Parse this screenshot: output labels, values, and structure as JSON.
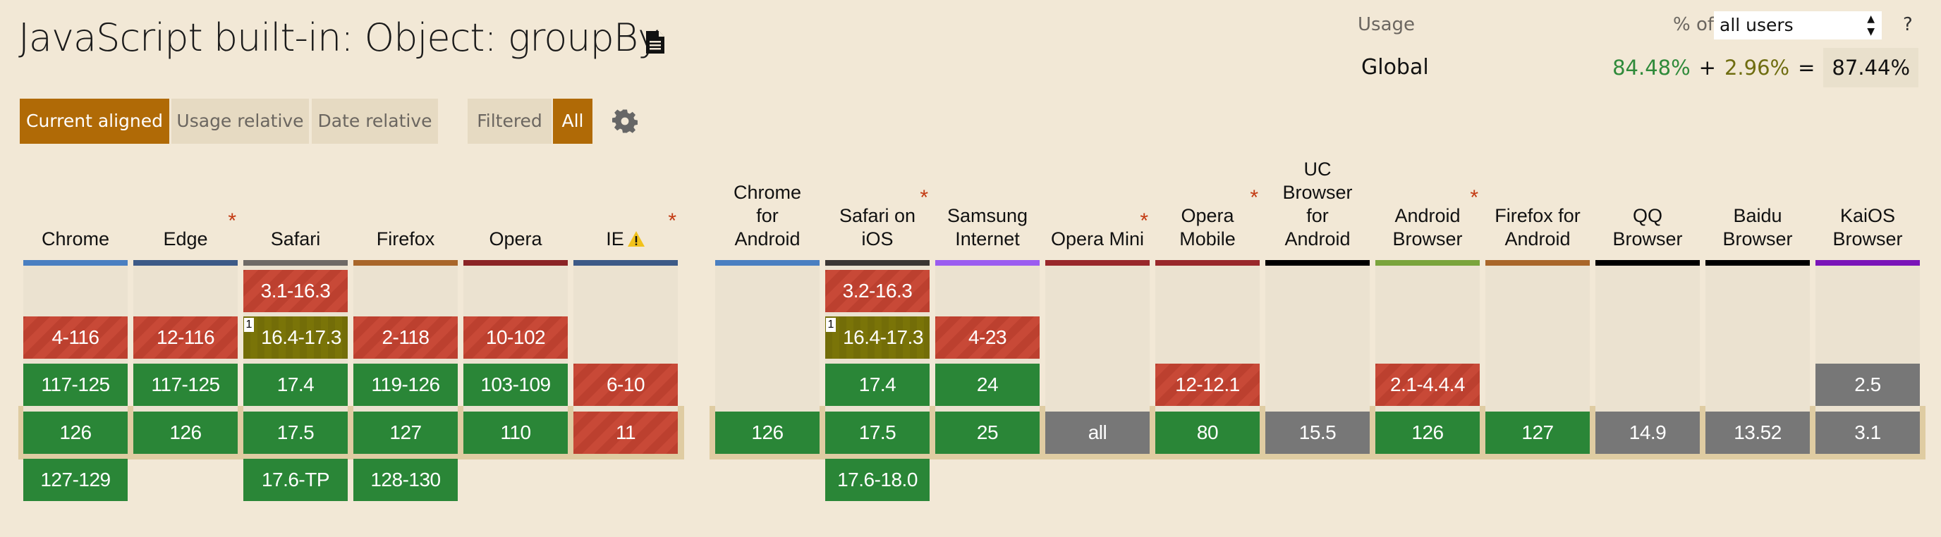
{
  "title": "JavaScript built-in: Object: groupBy",
  "toolbar": {
    "modes": [
      "Current aligned",
      "Usage relative",
      "Date relative"
    ],
    "active_mode": "Current aligned",
    "filters": [
      "Filtered",
      "All"
    ],
    "active_filter": "All"
  },
  "usage": {
    "label": "Usage",
    "pct_of": "% of",
    "select_value": "all users",
    "help": "?",
    "region": "Global",
    "full": "84.48%",
    "plus": "+",
    "partial": "2.96%",
    "equals": "=",
    "total": "87.44%"
  },
  "colors": {
    "supported": "#2a8637",
    "unsupported": "#c64331",
    "partial": "#7a7408",
    "unknown": "#777777",
    "accent": "#b06a06"
  },
  "desktop": [
    {
      "name": "Chrome",
      "bar": "#4a7fc1",
      "cells": [
        [
          1,
          "4-116",
          "n"
        ],
        [
          2,
          "117-125",
          "y"
        ],
        [
          3,
          "126",
          "y"
        ],
        [
          4,
          "127-129",
          "y"
        ]
      ]
    },
    {
      "name": "Edge",
      "asterisk": true,
      "bar": "#3d5a87",
      "cells": [
        [
          1,
          "12-116",
          "n"
        ],
        [
          2,
          "117-125",
          "y"
        ],
        [
          3,
          "126",
          "y"
        ]
      ]
    },
    {
      "name": "Safari",
      "bar": "#6e6a66",
      "cells": [
        [
          0,
          "3.1-16.3",
          "n"
        ],
        [
          1,
          "16.4-17.3",
          "a",
          "1"
        ],
        [
          2,
          "17.4",
          "y"
        ],
        [
          3,
          "17.5",
          "y"
        ],
        [
          4,
          "17.6-TP",
          "y"
        ]
      ]
    },
    {
      "name": "Firefox",
      "bar": "#a9662a",
      "cells": [
        [
          1,
          "2-118",
          "n"
        ],
        [
          2,
          "119-126",
          "y"
        ],
        [
          3,
          "127",
          "y"
        ],
        [
          4,
          "128-130",
          "y"
        ]
      ]
    },
    {
      "name": "Opera",
      "bar": "#8b2426",
      "cells": [
        [
          1,
          "10-102",
          "n"
        ],
        [
          2,
          "103-109",
          "y"
        ],
        [
          3,
          "110",
          "y"
        ]
      ]
    },
    {
      "name": "IE",
      "warning": true,
      "asterisk": true,
      "bar": "#3d5a87",
      "cells": [
        [
          2,
          "6-10",
          "n"
        ],
        [
          3,
          "11",
          "n"
        ]
      ]
    }
  ],
  "mobile": [
    {
      "name": "Chrome\nfor\nAndroid",
      "bar": "#4a7fc1",
      "cells": [
        [
          3,
          "126",
          "y"
        ]
      ]
    },
    {
      "name": "Safari on\niOS",
      "asterisk": true,
      "bar": "#3a3633",
      "cells": [
        [
          0,
          "3.2-16.3",
          "n"
        ],
        [
          1,
          "16.4-17.3",
          "a",
          "1"
        ],
        [
          2,
          "17.4",
          "y"
        ],
        [
          3,
          "17.5",
          "y"
        ],
        [
          4,
          "17.6-18.0",
          "y"
        ]
      ]
    },
    {
      "name": "Samsung\nInternet",
      "bar": "#9b5cf0",
      "cells": [
        [
          1,
          "4-23",
          "n"
        ],
        [
          2,
          "24",
          "y"
        ],
        [
          3,
          "25",
          "y"
        ]
      ]
    },
    {
      "name": "Opera Mini",
      "asterisk": true,
      "bar": "#99282b",
      "cells": [
        [
          3,
          "all",
          "u"
        ]
      ]
    },
    {
      "name": "Opera\nMobile",
      "asterisk": true,
      "bar": "#99282b",
      "cells": [
        [
          2,
          "12-12.1",
          "n"
        ],
        [
          3,
          "80",
          "y"
        ]
      ]
    },
    {
      "name": "UC\nBrowser\nfor\nAndroid",
      "bar": "#000000",
      "cells": [
        [
          3,
          "15.5",
          "u"
        ]
      ]
    },
    {
      "name": "Android\nBrowser",
      "asterisk": true,
      "bar": "#7aa43c",
      "cells": [
        [
          2,
          "2.1-4.4.4",
          "n"
        ],
        [
          3,
          "126",
          "y"
        ]
      ]
    },
    {
      "name": "Firefox for\nAndroid",
      "bar": "#a9662a",
      "cells": [
        [
          3,
          "127",
          "y"
        ]
      ]
    },
    {
      "name": "QQ\nBrowser",
      "bar": "#000000",
      "cells": [
        [
          3,
          "14.9",
          "u"
        ]
      ]
    },
    {
      "name": "Baidu\nBrowser",
      "bar": "#000000",
      "cells": [
        [
          3,
          "13.52",
          "u"
        ]
      ]
    },
    {
      "name": "KaiOS\nBrowser",
      "bar": "#7a14b8",
      "cells": [
        [
          2,
          "2.5",
          "u"
        ],
        [
          3,
          "3.1",
          "u"
        ]
      ]
    }
  ]
}
